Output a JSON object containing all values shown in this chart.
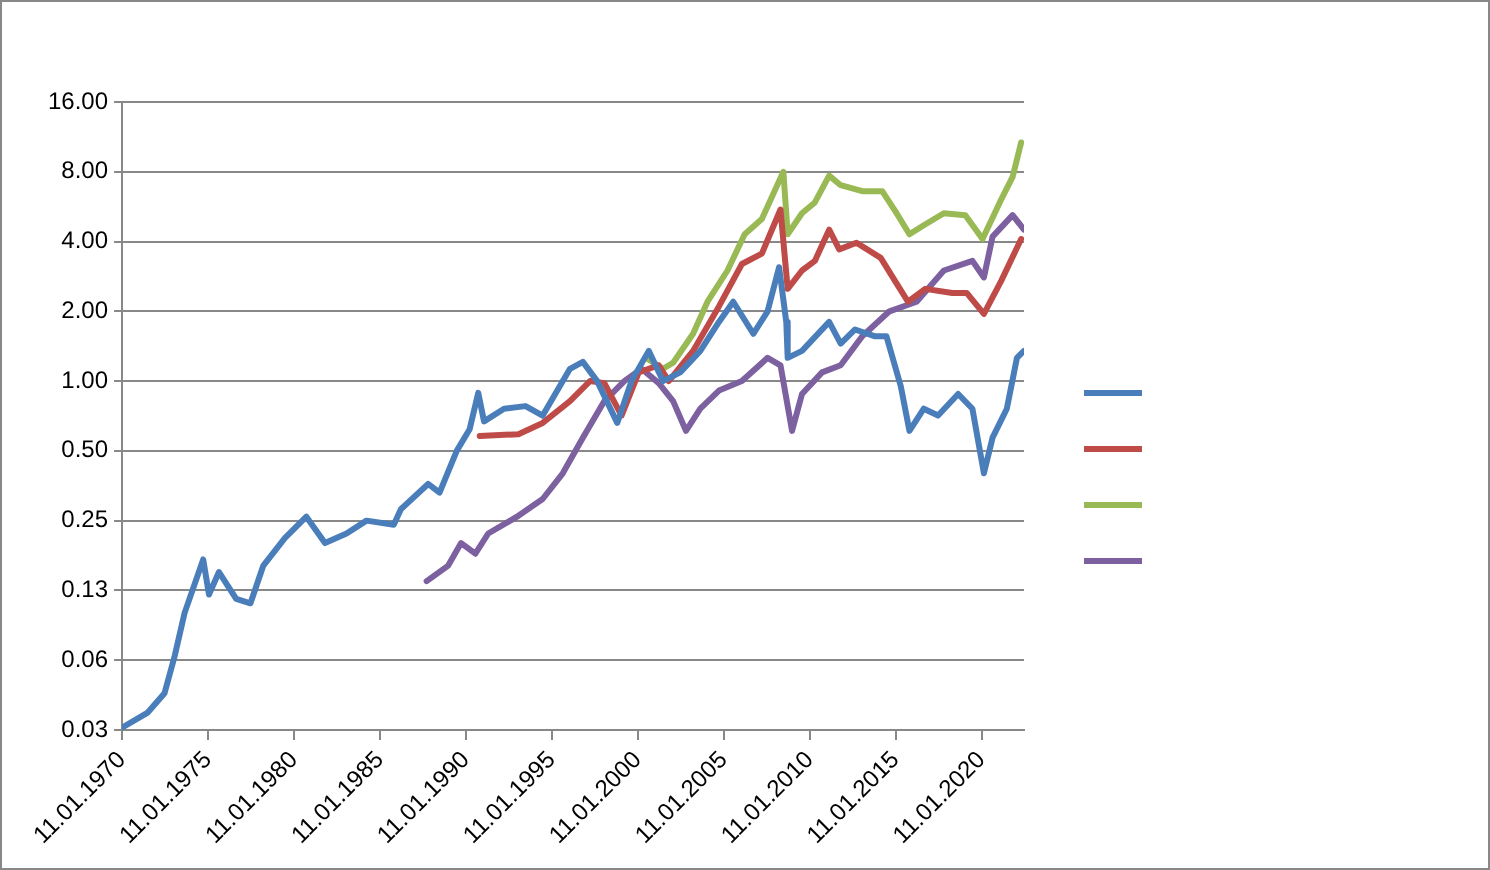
{
  "chart_data": {
    "type": "line",
    "log": "y",
    "grid": "y",
    "marker": "none",
    "line_style": "solid",
    "xlim": [
      "1970-01-11",
      "2022-07-01"
    ],
    "xticks": [
      {
        "value": "1970-01-11",
        "label": "11.01.1970"
      },
      {
        "value": "1975-01-11",
        "label": "11.01.1975"
      },
      {
        "value": "1980-01-11",
        "label": "11.01.1980"
      },
      {
        "value": "1985-01-11",
        "label": "11.01.1985"
      },
      {
        "value": "1990-01-11",
        "label": "11.01.1990"
      },
      {
        "value": "1995-01-11",
        "label": "11.01.1995"
      },
      {
        "value": "2000-01-11",
        "label": "11.01.2000"
      },
      {
        "value": "2005-01-11",
        "label": "11.01.2005"
      },
      {
        "value": "2010-01-11",
        "label": "11.01.2010"
      },
      {
        "value": "2015-01-11",
        "label": "11.01.2015"
      },
      {
        "value": "2020-01-11",
        "label": "11.01.2020"
      }
    ],
    "ylim": [
      0.03125,
      16
    ],
    "yticks": [
      {
        "value": 0.03125,
        "label": "0.03"
      },
      {
        "value": 0.0625,
        "label": "0.06"
      },
      {
        "value": 0.125,
        "label": "0.13"
      },
      {
        "value": 0.25,
        "label": "0.25"
      },
      {
        "value": 0.5,
        "label": "0.50"
      },
      {
        "value": 1,
        "label": "1.00"
      },
      {
        "value": 2,
        "label": "2.00"
      },
      {
        "value": 4,
        "label": "4.00"
      },
      {
        "value": 8,
        "label": "8.00"
      },
      {
        "value": 16,
        "label": "16.00"
      }
    ],
    "series": [
      {
        "color": "#4a7ebb",
        "x": [
          "1970-01-11",
          "1971-07",
          "1972-07",
          "1973-02",
          "1973-09",
          "1974-10",
          "1975-02",
          "1975-09",
          "1976-09",
          "1977-07",
          "1978-04",
          "1979-07",
          "1980-10",
          "1981-11",
          "1983-02",
          "1984-04",
          "1985-11",
          "1986-04",
          "1987-11",
          "1988-07",
          "1989-07",
          "1990-04",
          "1990-10",
          "1991-02",
          "1992-04",
          "1993-07",
          "1994-07",
          "1996-02",
          "1996-11",
          "1997-09",
          "1998-11",
          "1999-09",
          "2000-09",
          "2001-07",
          "2002-07",
          "2003-09",
          "2004-10",
          "2005-08",
          "2006-10",
          "2007-08",
          "2008-04",
          "2008-09",
          "2008-10",
          "2009-08",
          "2011-03",
          "2011-11",
          "2012-09",
          "2013-11",
          "2014-07",
          "2015-05",
          "2015-11",
          "2016-09",
          "2017-07",
          "2018-09",
          "2019-07",
          "2020-03",
          "2020-09",
          "2021-07",
          "2022-02",
          "2022-07"
        ],
        "values": [
          0.032,
          0.037,
          0.045,
          0.065,
          0.1,
          0.17,
          0.12,
          0.15,
          0.115,
          0.11,
          0.16,
          0.21,
          0.26,
          0.2,
          0.22,
          0.25,
          0.24,
          0.28,
          0.36,
          0.33,
          0.5,
          0.62,
          0.89,
          0.67,
          0.76,
          0.78,
          0.71,
          1.13,
          1.21,
          1.0,
          0.66,
          1.0,
          1.35,
          1.0,
          1.09,
          1.35,
          1.8,
          2.2,
          1.6,
          2.0,
          3.1,
          1.8,
          1.26,
          1.35,
          1.8,
          1.45,
          1.67,
          1.56,
          1.56,
          0.95,
          0.61,
          0.76,
          0.71,
          0.88,
          0.76,
          0.4,
          0.57,
          0.76,
          1.26,
          1.35
        ]
      },
      {
        "color": "#be4b48",
        "x": [
          "1990-11",
          "1993-02",
          "1994-07",
          "1996-02",
          "1997-04",
          "1998-02",
          "1999-02",
          "2000-02",
          "2001-04",
          "2001-11",
          "2003-04",
          "2004-10",
          "2006-02",
          "2007-04",
          "2008-05",
          "2008-10",
          "2009-08",
          "2010-05",
          "2011-03",
          "2011-10",
          "2012-10",
          "2014-03",
          "2015-01",
          "2015-10",
          "2016-10",
          "2018-05",
          "2019-03",
          "2020-03",
          "2021-03",
          "2022-05"
        ],
        "values": [
          0.58,
          0.59,
          0.66,
          0.82,
          1.0,
          0.98,
          0.71,
          1.09,
          1.17,
          1.0,
          1.35,
          2.1,
          3.2,
          3.55,
          5.5,
          2.5,
          3.0,
          3.3,
          4.5,
          3.7,
          3.95,
          3.4,
          2.7,
          2.2,
          2.5,
          2.4,
          2.4,
          1.95,
          2.7,
          4.1
        ]
      },
      {
        "color": "#98b954",
        "x": [
          "2000-07",
          "2001-07",
          "2002-02",
          "2003-04",
          "2004-02",
          "2005-04",
          "2006-04",
          "2007-04",
          "2008-07",
          "2008-10",
          "2009-08",
          "2010-05",
          "2011-03",
          "2011-11",
          "2013-02",
          "2014-04",
          "2015-02",
          "2015-11",
          "2016-09",
          "2017-11",
          "2019-02",
          "2020-02",
          "2021-02",
          "2021-11",
          "2022-05"
        ],
        "values": [
          1.26,
          1.13,
          1.2,
          1.6,
          2.2,
          3.0,
          4.3,
          5.0,
          8.0,
          4.3,
          5.3,
          5.9,
          7.7,
          7.0,
          6.6,
          6.6,
          5.3,
          4.3,
          4.7,
          5.3,
          5.2,
          4.1,
          5.9,
          7.6,
          10.7
        ]
      },
      {
        "color": "#7d60a0",
        "x": [
          "1987-10",
          "1989-01",
          "1989-10",
          "1990-08",
          "1991-05",
          "1993-01",
          "1994-07",
          "1995-09",
          "1996-11",
          "1998-02",
          "1999-04",
          "2000-04",
          "2001-04",
          "2002-02",
          "2002-11",
          "2003-09",
          "2004-10",
          "2006-02",
          "2007-08",
          "2008-05",
          "2009-01",
          "2009-08",
          "2010-10",
          "2011-11",
          "2013-02",
          "2014-09",
          "2016-04",
          "2017-11",
          "2019-07",
          "2020-03",
          "2020-09",
          "2021-11",
          "2022-07"
        ],
        "values": [
          0.137,
          0.16,
          0.2,
          0.18,
          0.22,
          0.26,
          0.31,
          0.4,
          0.57,
          0.82,
          1.0,
          1.13,
          0.98,
          0.82,
          0.61,
          0.76,
          0.91,
          1.0,
          1.26,
          1.17,
          0.61,
          0.88,
          1.09,
          1.17,
          1.56,
          2.0,
          2.2,
          3.0,
          3.3,
          2.8,
          4.2,
          5.2,
          4.5
        ]
      }
    ]
  }
}
